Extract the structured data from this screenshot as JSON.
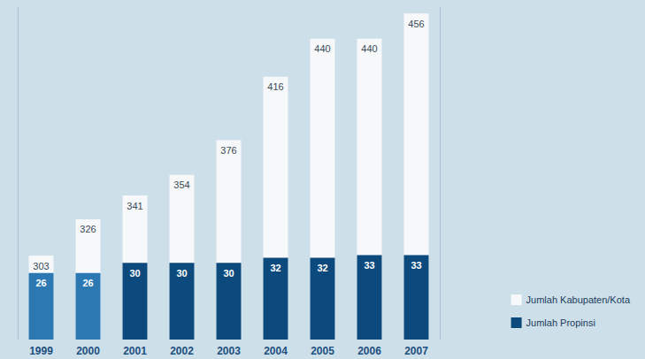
{
  "chart_data": {
    "type": "bar",
    "categories": [
      "1999",
      "2000",
      "2001",
      "2002",
      "2003",
      "2004",
      "2005",
      "2006",
      "2007"
    ],
    "series": [
      {
        "name": "Jumlah Kabupaten/Kota",
        "color": "#f6f8fa",
        "values": [
          303,
          326,
          341,
          354,
          376,
          416,
          440,
          440,
          456
        ]
      },
      {
        "name": "Jumlah Propinsi",
        "axis": "y2",
        "colors": [
          "#2b78b3",
          "#2b78b3",
          "#0c4a7e",
          "#0c4a7e",
          "#0c4a7e",
          "#0c4a7e",
          "#0c4a7e",
          "#0c4a7e",
          "#0c4a7e"
        ],
        "values": [
          26,
          26,
          30,
          30,
          30,
          32,
          32,
          33,
          33
        ]
      }
    ],
    "ylim": [
      250,
      460
    ],
    "yticks": [],
    "y2lim": [
      0,
      130
    ],
    "y2ticks": [],
    "data_labels": true,
    "tick_labels": "x",
    "legend": "lower right",
    "grid": false
  }
}
